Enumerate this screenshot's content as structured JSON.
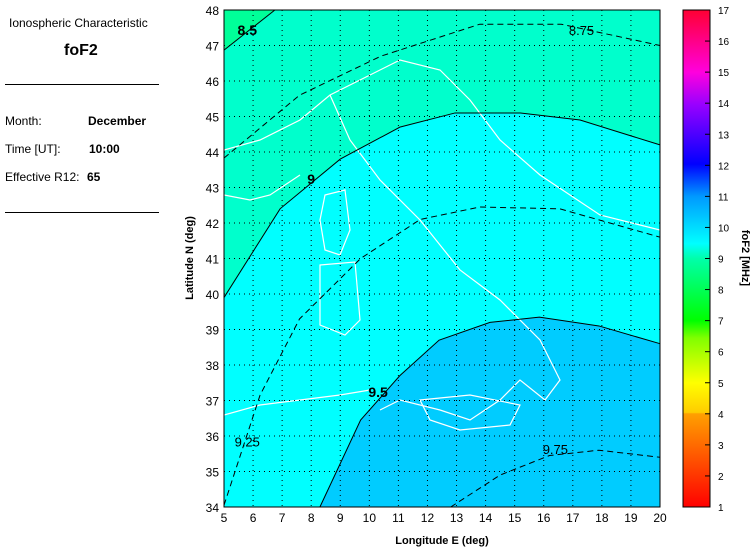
{
  "panel": {
    "heading": "Ionospheric Characteristic",
    "characteristic": "foF2",
    "month_label": "Month:",
    "month_value": "December",
    "time_label": "Time [UT]:",
    "time_value": "10:00",
    "r12_label": "Effective R12:",
    "r12_value": "65"
  },
  "chart_data": {
    "type": "contour",
    "xlabel": "Longitude E (deg)",
    "ylabel": "Latitude N (deg)",
    "xlim": [
      5,
      20
    ],
    "ylim": [
      34,
      48
    ],
    "xticks": [
      5,
      6,
      7,
      8,
      9,
      10,
      11,
      12,
      13,
      14,
      15,
      16,
      17,
      18,
      19,
      20
    ],
    "yticks": [
      34,
      35,
      36,
      37,
      38,
      39,
      40,
      41,
      42,
      43,
      44,
      45,
      46,
      47,
      48
    ],
    "grid": true,
    "colorbar": {
      "label": "foF2 [MHz]",
      "range": [
        1,
        17
      ],
      "ticks": [
        1,
        2,
        3,
        4,
        5,
        6,
        7,
        8,
        9,
        10,
        11,
        12,
        13,
        14,
        15,
        16,
        17
      ],
      "position": "right"
    },
    "fill_colors": {
      "8-8.5": "#00ff99",
      "8.5-9": "#00ffcc",
      "9-9.5": "#00ffff",
      "9.5-10": "#00ccff"
    },
    "contours": [
      {
        "level": "8.5",
        "style": "solid",
        "label_at": [
          5.8,
          47.3
        ],
        "points": [
          [
            5,
            46.87
          ],
          [
            6.75,
            48
          ]
        ]
      },
      {
        "level": "8.75",
        "style": "dashed",
        "label_at": [
          17.3,
          47.3
        ],
        "points": [
          [
            5,
            43.83
          ],
          [
            7.6,
            45.6
          ],
          [
            10.4,
            46.7
          ],
          [
            13.8,
            47.6
          ],
          [
            16.6,
            47.6
          ],
          [
            20,
            47.0
          ]
        ]
      },
      {
        "level": "9",
        "style": "solid",
        "label_at": [
          8.0,
          43.1
        ],
        "points": [
          [
            5,
            39.9
          ],
          [
            6.93,
            42.4
          ],
          [
            9,
            43.8
          ],
          [
            11.05,
            44.7
          ],
          [
            12.95,
            45.1
          ],
          [
            15.2,
            45.1
          ],
          [
            17.25,
            44.9
          ],
          [
            20,
            44.2
          ]
        ]
      },
      {
        "level": "9.25",
        "style": "dashed",
        "label_at": [
          5.8,
          35.7
        ],
        "points": [
          [
            5,
            34.05
          ],
          [
            6.24,
            37.15
          ],
          [
            7.6,
            39.3
          ],
          [
            9.7,
            41.0
          ],
          [
            11.75,
            42.1
          ],
          [
            13.8,
            42.45
          ],
          [
            16.55,
            42.4
          ],
          [
            20,
            41.6
          ]
        ]
      },
      {
        "level": "9.5",
        "style": "solid",
        "label_at": [
          10.3,
          37.1
        ],
        "points": [
          [
            8.3,
            34
          ],
          [
            9.7,
            36.45
          ],
          [
            11.05,
            37.7
          ],
          [
            12.4,
            38.7
          ],
          [
            14.15,
            39.2
          ],
          [
            15.85,
            39.35
          ],
          [
            17.9,
            39.1
          ],
          [
            20,
            38.6
          ]
        ]
      },
      {
        "level": "9.75",
        "style": "dashed",
        "label_at": [
          16.4,
          35.5
        ],
        "points": [
          [
            12.8,
            34
          ],
          [
            14.5,
            34.9
          ],
          [
            16.2,
            35.45
          ],
          [
            17.9,
            35.6
          ],
          [
            20,
            35.4
          ]
        ]
      }
    ]
  }
}
